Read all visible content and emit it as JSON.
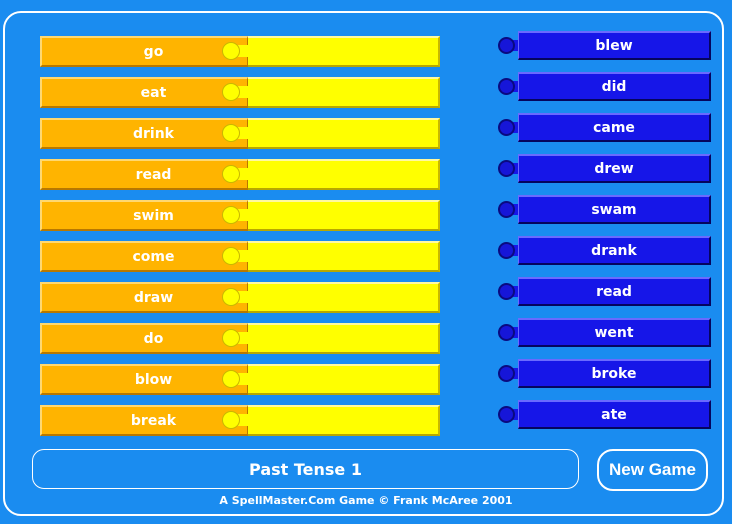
{
  "left_words": [
    "go",
    "eat",
    "drink",
    "read",
    "swim",
    "come",
    "draw",
    "do",
    "blow",
    "break"
  ],
  "right_words": [
    "blew",
    "did",
    "came",
    "drew",
    "swam",
    "drank",
    "read",
    "went",
    "broke",
    "ate"
  ],
  "title": "Past Tense 1",
  "new_game_label": "New Game",
  "footer": "A SpellMaster.Com Game © Frank McAree 2001",
  "colors": {
    "background": "#1a8cf0",
    "word_piece": "#ffb400",
    "answer_slot": "#ffff00",
    "answer_piece": "#1616e8"
  }
}
